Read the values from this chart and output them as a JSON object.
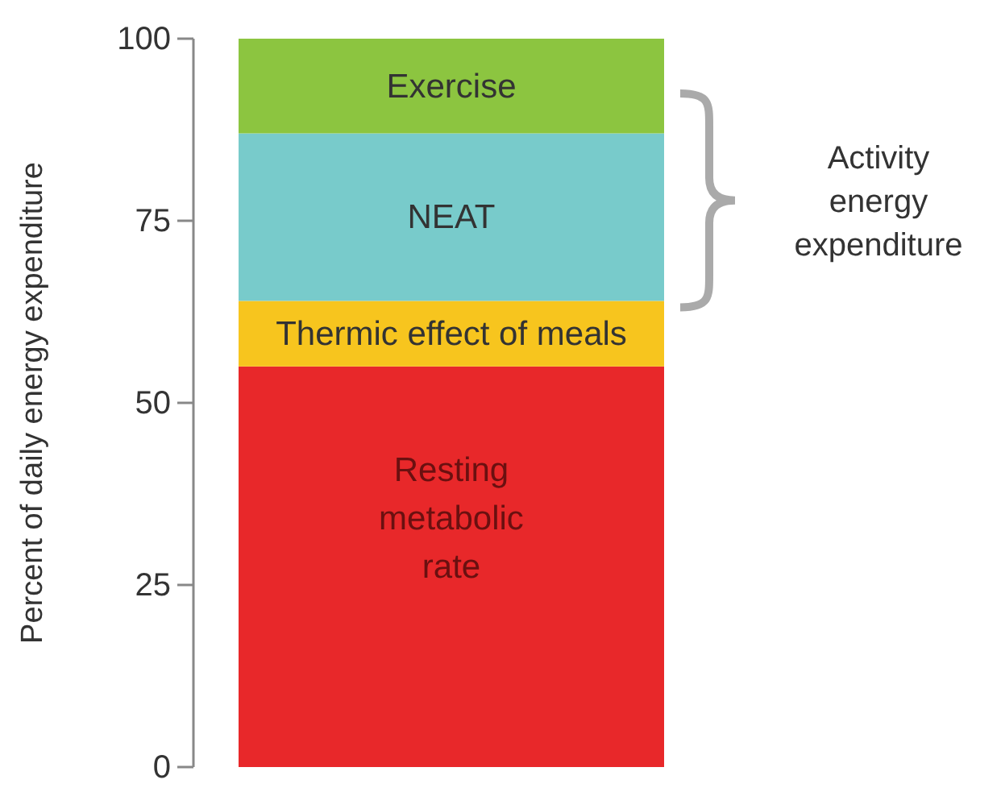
{
  "chart_data": {
    "type": "bar",
    "stacked": true,
    "ylabel": "Percent of daily energy expenditure",
    "categories": [
      null
    ],
    "ylim": [
      0,
      100
    ],
    "yticks": [
      0,
      25,
      50,
      75,
      100
    ],
    "series": [
      {
        "name": "Resting metabolic rate",
        "color": "#e8282a",
        "values": [
          55
        ]
      },
      {
        "name": "Thermic effect of meals",
        "color": "#f7c51e",
        "values": [
          9
        ]
      },
      {
        "name": "NEAT",
        "color": "#78cbcb",
        "values": [
          23
        ]
      },
      {
        "name": "Exercise",
        "color": "#8cc540",
        "values": [
          13
        ]
      }
    ],
    "annotations": [
      "Activity energy expenditure"
    ]
  }
}
